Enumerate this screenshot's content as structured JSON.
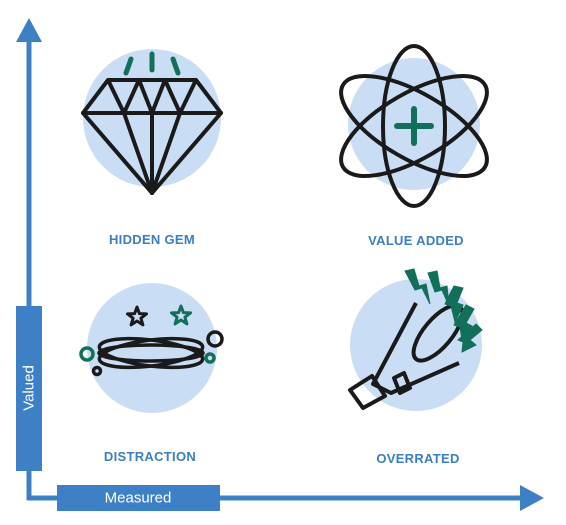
{
  "axes": {
    "y_label": "Valued",
    "x_label": "Measured"
  },
  "quadrants": [
    {
      "label": "HIDDEN GEM",
      "icon": "diamond-icon"
    },
    {
      "label": "VALUE ADDED",
      "icon": "atom-plus-icon"
    },
    {
      "label": "DISTRACTION",
      "icon": "dizzy-orbit-icon"
    },
    {
      "label": "OVERRATED",
      "icon": "megaphone-icon"
    }
  ],
  "colors": {
    "axis": "#3e80c6",
    "label": "#3b7ec4",
    "circle": "#c9ddf4",
    "stroke": "#1a1a1a",
    "accent": "#12705a"
  }
}
